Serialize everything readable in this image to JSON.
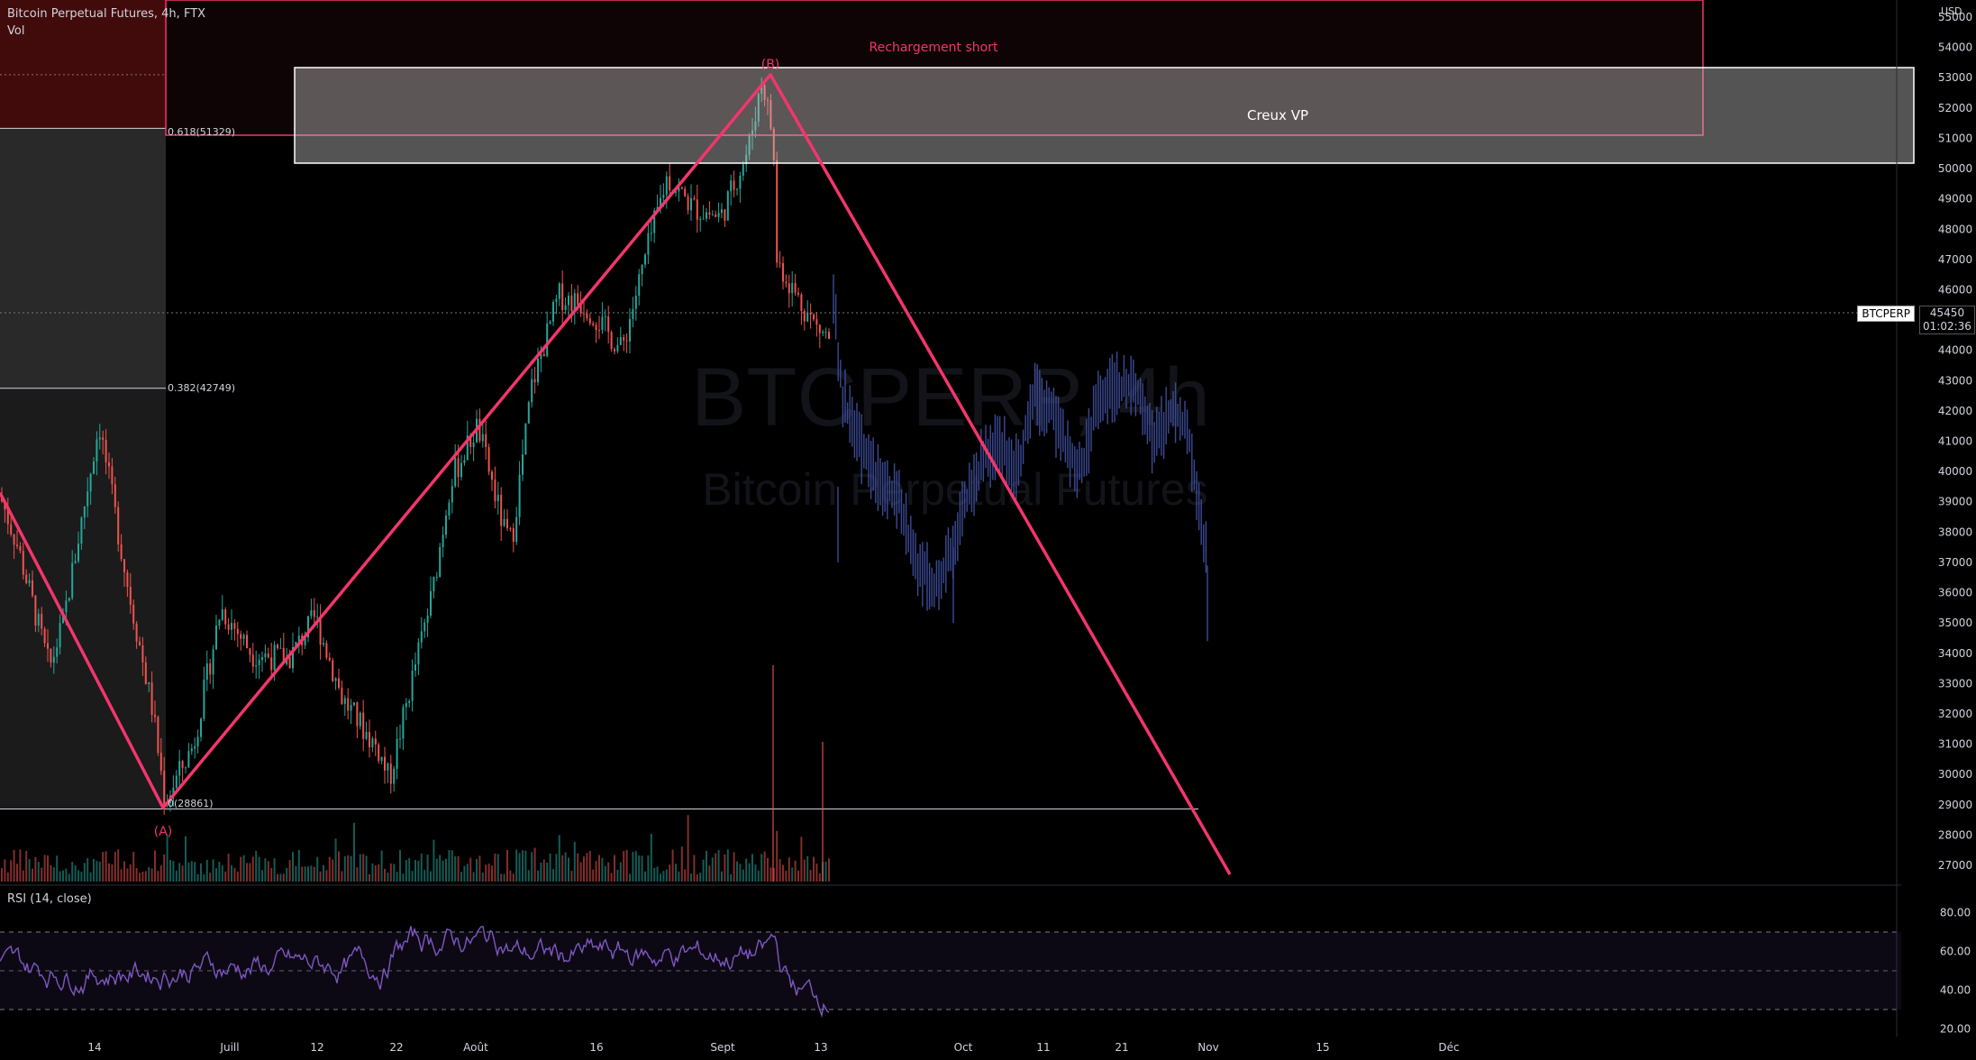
{
  "header": {
    "symbol_line": "Bitcoin Perpetual Futures, 4h, FTX",
    "volume_label": "Vol"
  },
  "watermark": {
    "line1": "BTCPERP, 4h",
    "line2": "Bitcoin Perpetual Futures"
  },
  "price_axis": {
    "currency": "USD",
    "ticks": [
      27000,
      28000,
      29000,
      30000,
      31000,
      32000,
      33000,
      34000,
      35000,
      36000,
      37000,
      38000,
      39000,
      40000,
      41000,
      42000,
      43000,
      44000,
      45000,
      46000,
      47000,
      48000,
      49000,
      50000,
      51000,
      52000,
      53000,
      54000,
      55000
    ]
  },
  "current_price": {
    "symbol": "BTCPERP",
    "price": "45450",
    "countdown": "01:02:36"
  },
  "rsi": {
    "label": "RSI (14, close)",
    "ticks": [
      "80.00",
      "60.00",
      "40.00",
      "20.00"
    ]
  },
  "time_axis": {
    "labels": [
      "14",
      "Juill",
      "12",
      "22",
      "Août",
      "16",
      "Sept",
      "13",
      "Oct",
      "11",
      "21",
      "Nov",
      "15",
      "Déc"
    ]
  },
  "annotations": {
    "recharge_label": "Rechargement short",
    "zone_label": "Creux VP",
    "point_b": "(B)",
    "point_a": "(A)",
    "fib_618": "0.618(51329)",
    "fib_382": "0.382(42749)",
    "fib_0": "0(28861)"
  },
  "chart_data": {
    "type": "candlestick",
    "symbol": "BTCPERP",
    "interval": "4h",
    "price_range": [
      26500,
      55800
    ],
    "rsi_range": [
      18,
      86
    ],
    "key_points": [
      {
        "label": "(A)",
        "date": "late June",
        "price": 28861
      },
      {
        "label": "(B)",
        "date": "early Sept",
        "price": 53100
      }
    ],
    "fibonacci": [
      {
        "level": 0,
        "price": 28861
      },
      {
        "level": 0.382,
        "price": 42749
      },
      {
        "level": 0.618,
        "price": 51329
      }
    ],
    "projection_end_price": 26700,
    "current_price": 45450,
    "rsi_bands": [
      70,
      50,
      30
    ],
    "colors": {
      "up": "#26a69a",
      "down": "#ef5350",
      "projection": "#3b4a96",
      "pattern": "#f2366b",
      "rsi": "#7e57c2"
    }
  }
}
